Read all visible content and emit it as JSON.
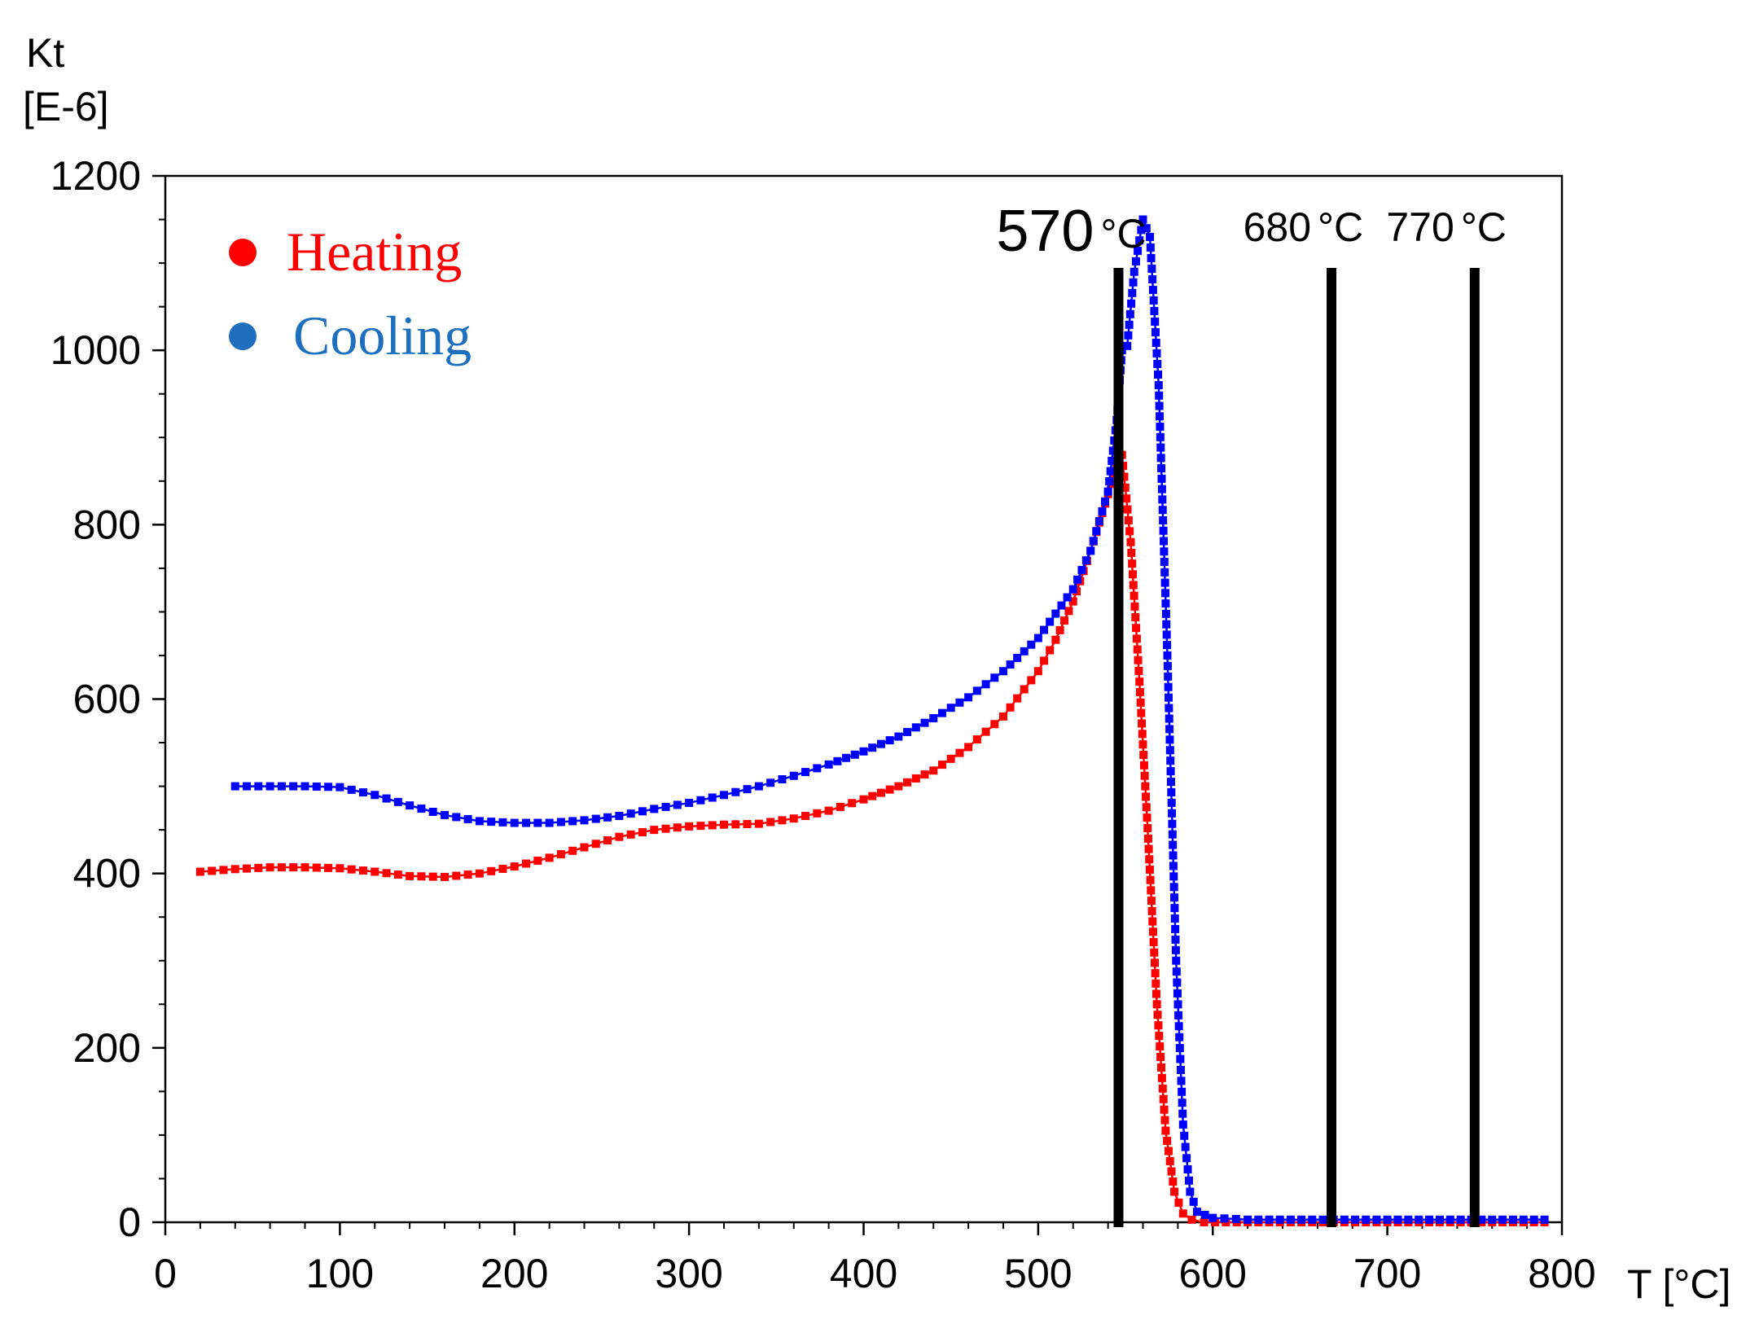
{
  "chart_data": {
    "type": "line",
    "title": "",
    "ylabel": "Kt",
    "ylabel_unit": "[E-6]",
    "xlabel": "T [°C]",
    "xlim": [
      0,
      800
    ],
    "ylim": [
      0,
      1200
    ],
    "xticks": [
      0,
      100,
      200,
      300,
      400,
      500,
      600,
      700,
      800
    ],
    "yticks": [
      0,
      200,
      400,
      600,
      800,
      1000,
      1200
    ],
    "xtick_labels": [
      "0",
      "100",
      "200",
      "300",
      "400",
      "500",
      "600",
      "700",
      "800"
    ],
    "ytick_labels": [
      "0",
      "200",
      "400",
      "600",
      "800",
      "1000",
      "1200"
    ],
    "legend": {
      "position": "top-left"
    },
    "series": [
      {
        "name": "Heating",
        "color": "#ff0000",
        "points": [
          [
            20,
            402
          ],
          [
            40,
            405
          ],
          [
            60,
            407
          ],
          [
            80,
            407
          ],
          [
            100,
            406
          ],
          [
            120,
            402
          ],
          [
            140,
            397
          ],
          [
            160,
            396
          ],
          [
            180,
            400
          ],
          [
            200,
            408
          ],
          [
            220,
            418
          ],
          [
            240,
            430
          ],
          [
            260,
            442
          ],
          [
            280,
            450
          ],
          [
            300,
            454
          ],
          [
            320,
            456
          ],
          [
            340,
            457
          ],
          [
            360,
            463
          ],
          [
            380,
            472
          ],
          [
            400,
            485
          ],
          [
            420,
            500
          ],
          [
            440,
            518
          ],
          [
            460,
            545
          ],
          [
            480,
            580
          ],
          [
            500,
            632
          ],
          [
            510,
            668
          ],
          [
            520,
            712
          ],
          [
            530,
            770
          ],
          [
            540,
            835
          ],
          [
            545,
            870
          ],
          [
            548,
            880
          ],
          [
            553,
            780
          ],
          [
            558,
            620
          ],
          [
            563,
            440
          ],
          [
            568,
            250
          ],
          [
            573,
            105
          ],
          [
            578,
            35
          ],
          [
            583,
            10
          ],
          [
            588,
            3
          ],
          [
            595,
            0
          ],
          [
            620,
            0
          ],
          [
            700,
            0
          ],
          [
            790,
            0
          ]
        ]
      },
      {
        "name": "Cooling",
        "color": "#0000ff",
        "points": [
          [
            40,
            500
          ],
          [
            60,
            500
          ],
          [
            80,
            500
          ],
          [
            100,
            499
          ],
          [
            120,
            490
          ],
          [
            140,
            478
          ],
          [
            160,
            467
          ],
          [
            180,
            460
          ],
          [
            200,
            458
          ],
          [
            220,
            458
          ],
          [
            240,
            461
          ],
          [
            260,
            466
          ],
          [
            280,
            474
          ],
          [
            300,
            481
          ],
          [
            320,
            490
          ],
          [
            340,
            500
          ],
          [
            360,
            512
          ],
          [
            380,
            525
          ],
          [
            400,
            540
          ],
          [
            420,
            557
          ],
          [
            440,
            578
          ],
          [
            460,
            602
          ],
          [
            480,
            632
          ],
          [
            500,
            670
          ],
          [
            520,
            726
          ],
          [
            530,
            770
          ],
          [
            540,
            838
          ],
          [
            545,
            920
          ],
          [
            548,
            1000
          ],
          [
            551,
            1005
          ],
          [
            555,
            1090
          ],
          [
            560,
            1150
          ],
          [
            564,
            1130
          ],
          [
            569,
            960
          ],
          [
            574,
            650
          ],
          [
            579,
            300
          ],
          [
            583,
            112
          ],
          [
            587,
            35
          ],
          [
            591,
            12
          ],
          [
            600,
            5
          ],
          [
            620,
            3
          ],
          [
            700,
            3
          ],
          [
            790,
            3
          ]
        ]
      }
    ],
    "annotations": [
      {
        "x": 546,
        "label_value": "570",
        "label_unit": "°C"
      },
      {
        "x": 668,
        "label_value": "680",
        "label_unit": "°C"
      },
      {
        "x": 750,
        "label_value": "770",
        "label_unit": "°C"
      }
    ]
  }
}
